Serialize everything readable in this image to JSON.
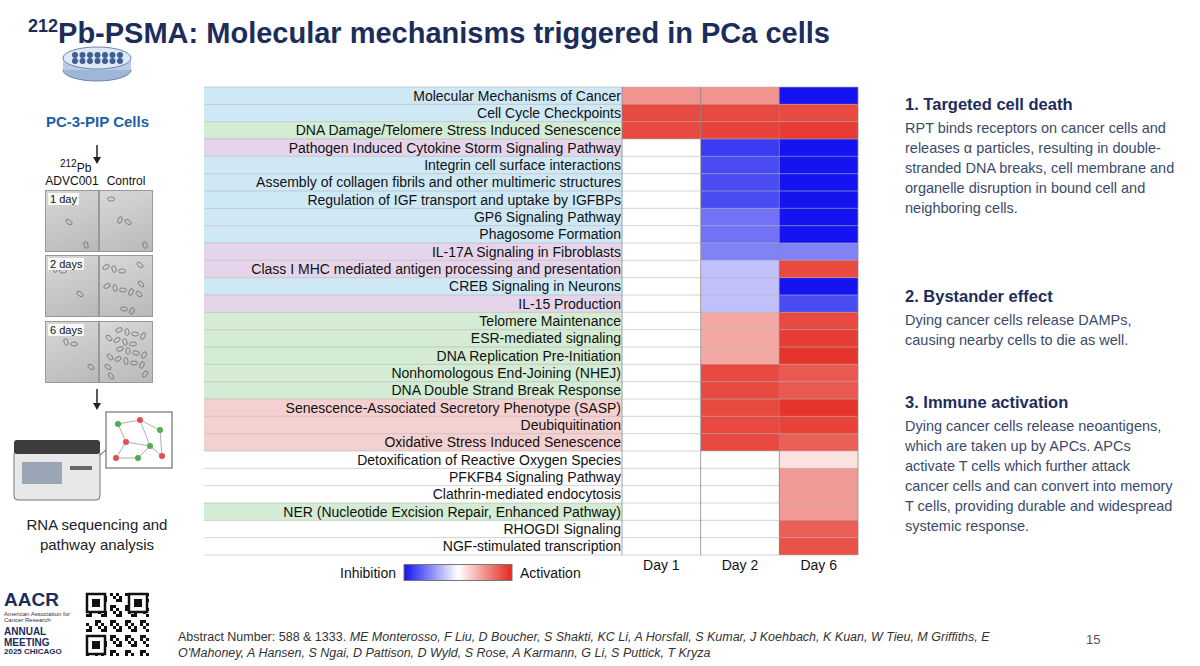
{
  "title": {
    "sup": "212",
    "text": "Pb-PSMA: Molecular mechanisms triggered in PCa cells"
  },
  "left_panel": {
    "cell_line": "PC-3-PIP Cells",
    "isotope": {
      "sup": "212",
      "text": "Pb"
    },
    "columns": [
      "ADVC001",
      "Control"
    ],
    "timepoints": [
      "1 day",
      "2 days",
      "6 days"
    ],
    "method": "RNA sequencing and pathway analysis"
  },
  "chart_data": {
    "type": "heatmap",
    "categories": [
      "Molecular Mechanisms of Cancer",
      "Cell Cycle Checkpoints",
      "DNA Damage/Telomere Stress Induced Senescence",
      "Pathogen Induced Cytokine Storm Signaling Pathway",
      "Integrin cell surface interactions",
      "Assembly of collagen fibrils and other multimeric structures",
      "Regulation of IGF transport and uptake by IGFBPs",
      "GP6 Signaling Pathway",
      "Phagosome Formation",
      "IL-17A Signaling in Fibroblasts",
      "Class I MHC mediated antigen processing and presentation",
      "CREB Signaling in Neurons",
      "IL-15 Production",
      "Telomere Maintenance",
      "ESR-mediated signaling",
      "DNA Replication Pre-Initiation",
      "Nonhomologous End-Joining (NHEJ)",
      "DNA Double Strand Break Response",
      "Senescence-Associated Secretory Phenotype (SASP)",
      "Deubiquitination",
      "Oxidative Stress Induced Senescence",
      "Detoxification of Reactive Oxygen Species",
      "PFKFB4 Signaling Pathway",
      "Clathrin-mediated endocytosis",
      "NER (Nucleotide Excision Repair, Enhanced Pathway)",
      "RHOGDI Signaling",
      "NGF-stimulated transcription"
    ],
    "x": [
      "Day 1",
      "Day 2",
      "Day 6"
    ],
    "cells": [
      [
        1.5,
        1.5,
        -3
      ],
      [
        2.5,
        2.5,
        2.5
      ],
      [
        2.5,
        2.6,
        2.7
      ],
      [
        null,
        -2.5,
        -3
      ],
      [
        null,
        -2.3,
        -3
      ],
      [
        null,
        -2.3,
        -3
      ],
      [
        null,
        -2.3,
        -3
      ],
      [
        null,
        -1.8,
        -3
      ],
      [
        null,
        -1.8,
        -3
      ],
      [
        null,
        -1.6,
        -1.6
      ],
      [
        null,
        -0.8,
        2.5
      ],
      [
        null,
        -0.8,
        -3
      ],
      [
        null,
        -0.8,
        -2.3
      ],
      [
        null,
        1.2,
        2.5
      ],
      [
        null,
        1.2,
        2.7
      ],
      [
        null,
        1.2,
        2.8
      ],
      [
        null,
        2.5,
        2.3
      ],
      [
        null,
        2.5,
        2.3
      ],
      [
        null,
        2.5,
        2.8
      ],
      [
        null,
        2.5,
        2.6
      ],
      [
        null,
        2.5,
        2.2
      ],
      [
        null,
        null,
        0.4
      ],
      [
        null,
        null,
        1.4
      ],
      [
        null,
        null,
        1.4
      ],
      [
        null,
        null,
        1.4
      ],
      [
        null,
        null,
        2.2
      ],
      [
        null,
        null,
        2.4
      ]
    ],
    "zlim": [
      -3,
      3
    ],
    "colorbar_low_label": "Inhibition",
    "colorbar_high_label": "Activation"
  },
  "notes": [
    {
      "heading": "1. Targeted cell death",
      "text": "RPT binds receptors on cancer cells and releases α particles, resulting in double-stranded DNA breaks, cell membrane and organelle disruption in bound cell and neighboring cells."
    },
    {
      "heading": "2. Bystander effect",
      "text": "Dying cancer cells release DAMPs, causing nearby cells to die as well."
    },
    {
      "heading": "3. Immune activation",
      "text": "Dying cancer cells release neoantigens, which are taken up by APCs. APCs activate T cells which further attack cancer cells and can convert into memory T cells, providing durable and widespread systemic response."
    }
  ],
  "footer": {
    "logo": [
      "AACR",
      "American Association for Cancer Research",
      "ANNUAL",
      "MEETING",
      "2025 CHICAGO"
    ],
    "abstract": "Abstract Number: 588 & 1333.",
    "authors": "ME Monterosso, F Liu, D Boucher, S Shakti, KC Li, A Horsfall, S Kumar, J Koehbach, K Kuan, W Tieu, M Griffiths, E O'Mahoney, A Hansen, S Ngai, D Pattison, D Wyld, S Rose, A Karmann, G Li, S Puttick, T Kryza",
    "page": "15"
  }
}
